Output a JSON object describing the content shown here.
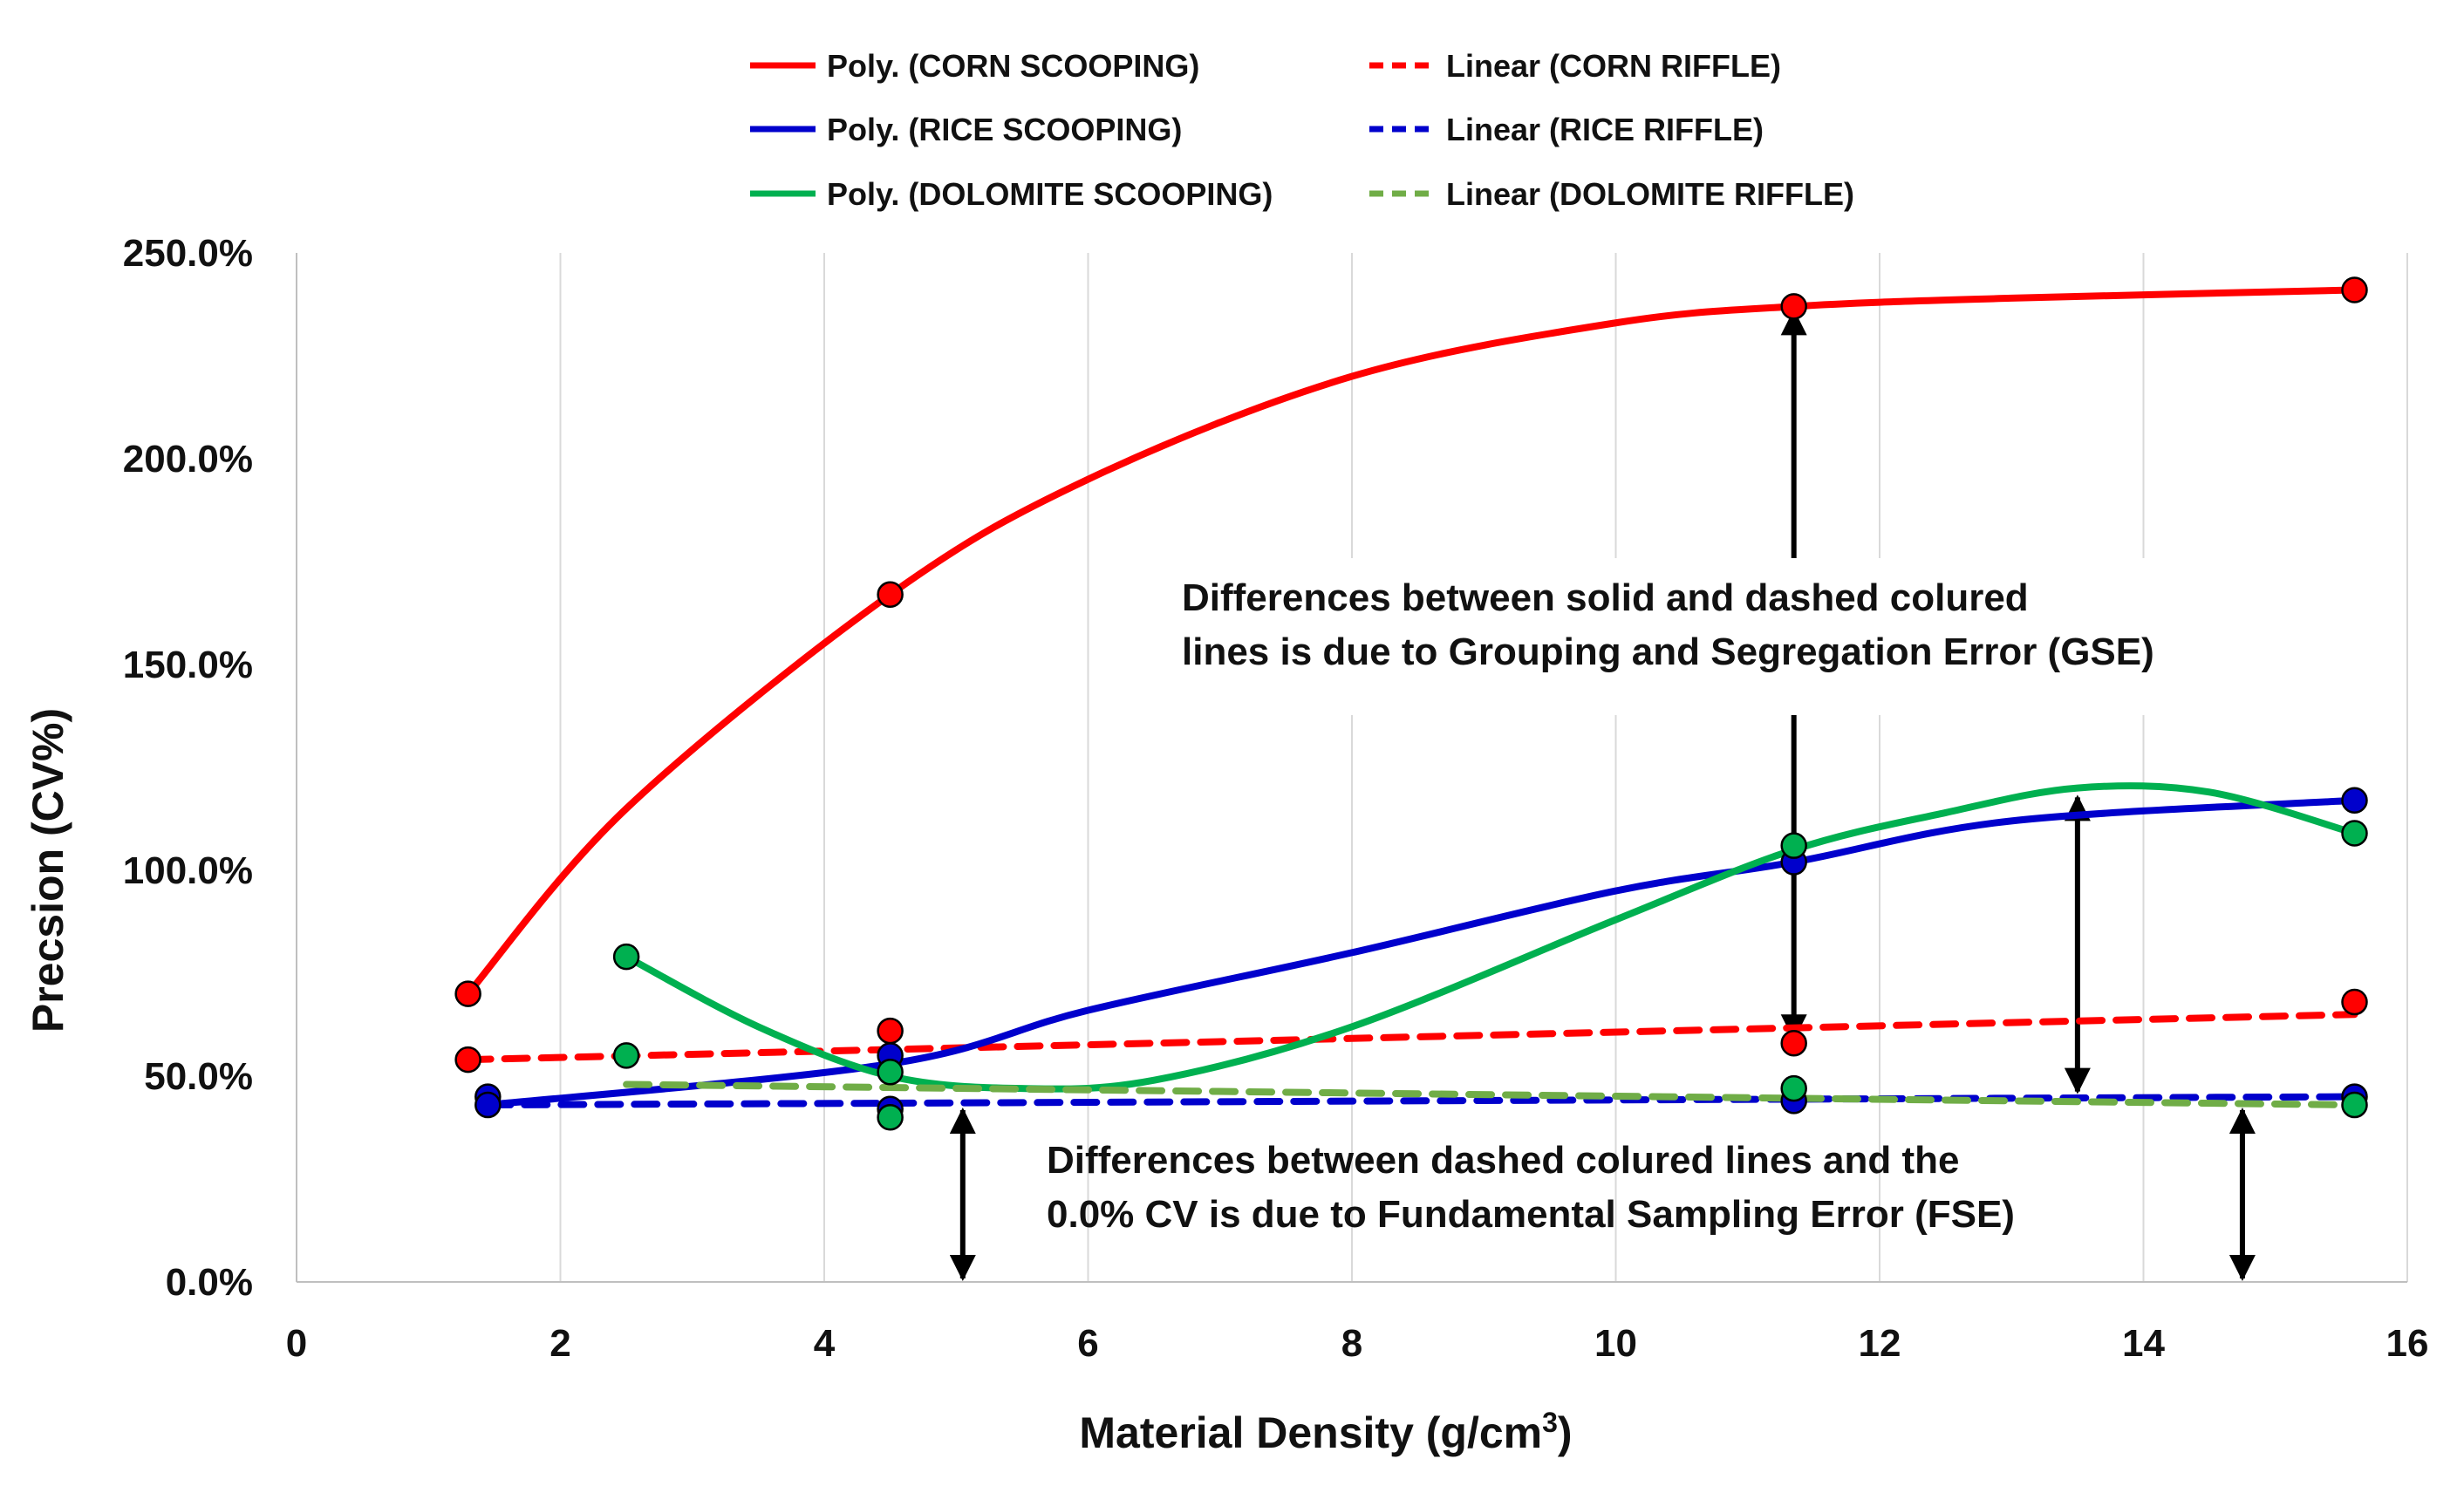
{
  "chart_data": {
    "type": "scatter",
    "title": "",
    "xlabel": "Material Density (g/cm",
    "xlabel_superscript": "3",
    "xlabel_suffix": ")",
    "ylabel": "Precsion (CV%)",
    "xlim": [
      0,
      16
    ],
    "ylim": [
      0,
      250
    ],
    "x_ticks": [
      0,
      2,
      4,
      6,
      8,
      10,
      12,
      14,
      16
    ],
    "x_tick_labels": [
      "0",
      "2",
      "4",
      "6",
      "8",
      "10",
      "12",
      "14",
      "16"
    ],
    "y_ticks": [
      0,
      50,
      100,
      150,
      200,
      250
    ],
    "y_tick_labels": [
      "0.0%",
      "50.0%",
      "100.0%",
      "150.0%",
      "200.0%",
      "250.0%"
    ],
    "grid": "vertical",
    "legend_position": "top",
    "legend": [
      {
        "label": "Poly. (CORN SCOOPING)",
        "color": "#ff0000",
        "style": "solid"
      },
      {
        "label": "Linear (CORN RIFFLE)",
        "color": "#ff0000",
        "style": "dashed"
      },
      {
        "label": "Poly. (RICE SCOOPING)",
        "color": "#0000cc",
        "style": "solid"
      },
      {
        "label": "Linear (RICE RIFFLE)",
        "color": "#0000cc",
        "style": "dashed"
      },
      {
        "label": "Poly. (DOLOMITE SCOOPING)",
        "color": "#00b050",
        "style": "solid"
      },
      {
        "label": "Linear (DOLOMITE RIFFLE)",
        "color": "#70ad47",
        "style": "dashed"
      }
    ],
    "points": [
      {
        "name": "corn-scooping",
        "color": "#ff0000",
        "x": [
          1.3,
          4.5,
          11.35,
          15.6
        ],
        "y": [
          70,
          167,
          237,
          241
        ]
      },
      {
        "name": "corn-riffle",
        "color": "#ff0000",
        "x": [
          1.3,
          4.5,
          11.35,
          15.6
        ],
        "y": [
          54,
          61,
          58,
          68
        ]
      },
      {
        "name": "rice-scooping",
        "color": "#0000cc",
        "x": [
          1.45,
          4.5,
          11.35,
          15.6
        ],
        "y": [
          45,
          55,
          102,
          117
        ]
      },
      {
        "name": "rice-riffle",
        "color": "#0000cc",
        "x": [
          1.45,
          4.5,
          11.35,
          15.6
        ],
        "y": [
          43,
          42,
          44,
          45
        ]
      },
      {
        "name": "dolomite-scooping",
        "color": "#00b050",
        "x": [
          2.5,
          4.5,
          11.35,
          15.6
        ],
        "y": [
          79,
          51,
          106,
          109
        ]
      },
      {
        "name": "dolomite-riffle",
        "color": "#00b050",
        "x": [
          2.5,
          4.5,
          11.35,
          15.6
        ],
        "y": [
          55,
          40,
          47,
          43
        ]
      }
    ],
    "trendlines": [
      {
        "name": "poly-corn-scooping",
        "color": "#ff0000",
        "dash": false,
        "x": [
          1.3,
          2.5,
          4.5,
          6,
          8,
          10,
          11.35,
          13,
          15.6
        ],
        "y": [
          70,
          115,
          167,
          195,
          220,
          233,
          237,
          239,
          241
        ]
      },
      {
        "name": "linear-corn-riffle",
        "color": "#ff0000",
        "dash": true,
        "x": [
          1.3,
          15.6
        ],
        "y": [
          54,
          65
        ]
      },
      {
        "name": "poly-rice-scooping",
        "color": "#0000cc",
        "dash": false,
        "x": [
          1.45,
          4.5,
          6,
          8,
          10,
          11.35,
          13,
          15.6
        ],
        "y": [
          43,
          53,
          66,
          80,
          95,
          102,
          112,
          117
        ]
      },
      {
        "name": "linear-rice-riffle",
        "color": "#0000cc",
        "dash": true,
        "x": [
          1.45,
          15.6
        ],
        "y": [
          43,
          45
        ]
      },
      {
        "name": "poly-dolomite-scooping",
        "color": "#00b050",
        "dash": false,
        "x": [
          2.5,
          3.5,
          4.5,
          5.5,
          6.5,
          8,
          10,
          11.35,
          12.5,
          13.5,
          14.5,
          15.6
        ],
        "y": [
          79,
          62,
          50,
          47,
          49,
          62,
          88,
          105,
          114,
          120,
          119,
          109
        ]
      },
      {
        "name": "linear-dolomite-riffle",
        "color": "#70ad47",
        "dash": true,
        "x": [
          2.5,
          15.6
        ],
        "y": [
          48,
          43
        ]
      }
    ],
    "arrows": [
      {
        "name": "gse-arrow-corn",
        "x": 11.35,
        "from": 58,
        "to": 237
      },
      {
        "name": "gse-arrow-dolomite",
        "x": 13.5,
        "from": 45,
        "to": 119
      },
      {
        "name": "fse-arrow-left",
        "x": 5.05,
        "from": 0,
        "to": 43
      },
      {
        "name": "fse-arrow-right",
        "x": 14.75,
        "from": 0,
        "to": 43
      }
    ],
    "annotations": [
      {
        "name": "gse-annotation",
        "lines": [
          "Differences between solid and dashed colured",
          "lines is due to Grouping and Segregation Error (GSE)"
        ]
      },
      {
        "name": "fse-annotation",
        "lines": [
          "Differences between dashed colured lines and the",
          "0.0% CV is due to Fundamental Sampling Error (FSE)"
        ]
      }
    ]
  }
}
